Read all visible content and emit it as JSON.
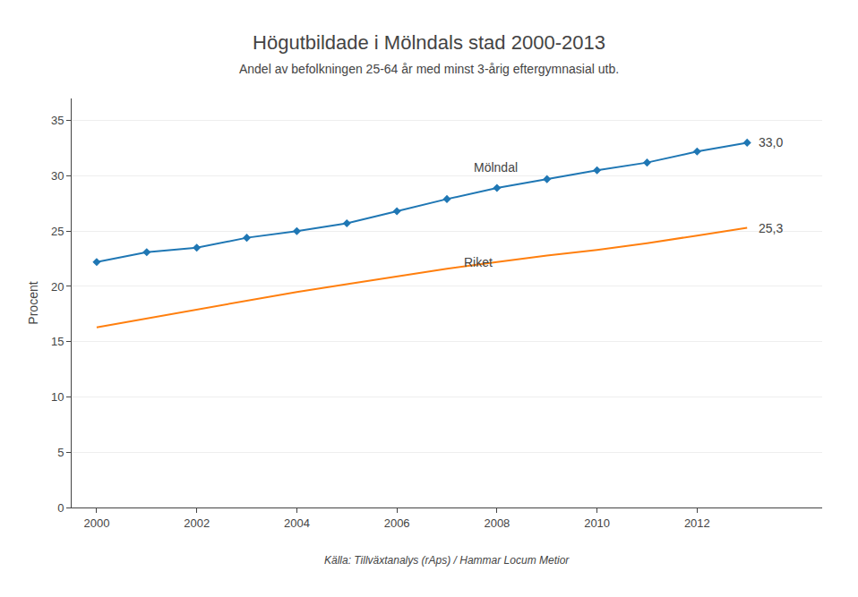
{
  "chart_data": {
    "type": "line",
    "title": "Högutbildade i Mölndals stad 2000-2013",
    "subtitle": "Andel av befolkningen 25-64 år med minst 3-årig eftergymnasial utb.",
    "ylabel": "Procent",
    "source": "Källa: Tillväxtanalys (rAps) / Hammar Locum Metior",
    "x": [
      2000,
      2001,
      2002,
      2003,
      2004,
      2005,
      2006,
      2007,
      2008,
      2009,
      2010,
      2011,
      2012,
      2013
    ],
    "series": [
      {
        "name": "Mölndal",
        "marker": "diamond",
        "line_style": "solid",
        "values": [
          22.2,
          23.1,
          23.5,
          24.4,
          25.0,
          25.7,
          26.8,
          27.9,
          28.9,
          29.7,
          30.5,
          31.2,
          32.2,
          33.0
        ]
      },
      {
        "name": "Riket",
        "marker": "none",
        "line_style": "solid",
        "values": [
          16.3,
          17.1,
          17.9,
          18.7,
          19.5,
          20.2,
          20.9,
          21.6,
          22.2,
          22.8,
          23.3,
          23.9,
          24.6,
          25.3
        ]
      }
    ],
    "annotations": [
      {
        "text": "Mölndal",
        "x": 2007.5,
        "y": 30.8
      },
      {
        "text": "Riket",
        "x": 2007.3,
        "y": 22.2
      },
      {
        "text": "33,0",
        "x": 2013.2,
        "y": 33.0
      },
      {
        "text": "25,3",
        "x": 2013.2,
        "y": 25.3
      }
    ],
    "xlim": [
      1999.5,
      2014.5
    ],
    "xticks": [
      2000,
      2002,
      2004,
      2006,
      2008,
      2010,
      2012
    ],
    "ylim": [
      0,
      37
    ],
    "yticks": [
      0,
      5,
      10,
      15,
      20,
      25,
      30,
      35
    ],
    "grid": "y",
    "legend": "none"
  }
}
